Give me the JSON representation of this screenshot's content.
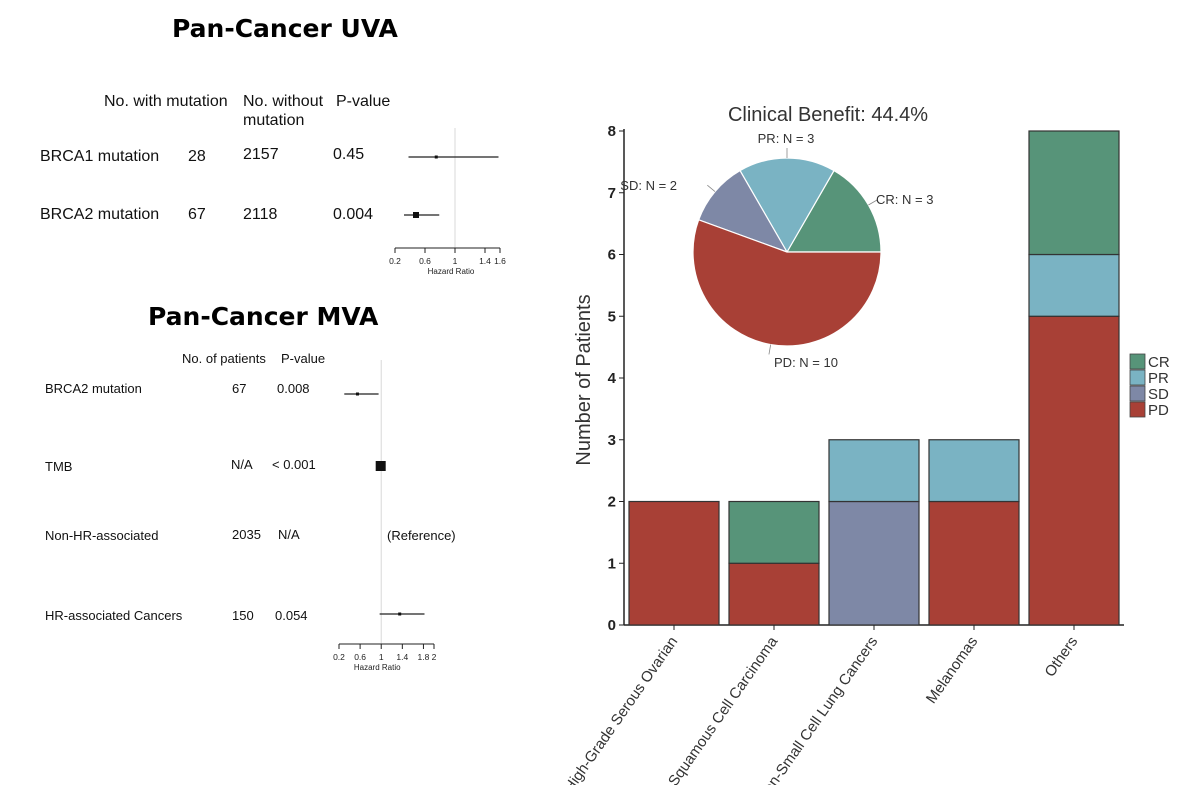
{
  "uva": {
    "title": "Pan-Cancer UVA",
    "col_with": "No. with mutation",
    "col_without_1": "No. without",
    "col_without_2": "mutation",
    "col_p": "P-value",
    "rows": [
      {
        "label": "BRCA1 mutation",
        "with": "28",
        "without": "2157",
        "p": "0.45"
      },
      {
        "label": "BRCA2 mutation",
        "with": "67",
        "without": "2118",
        "p": "0.004"
      }
    ],
    "axis_label": "Hazard Ratio",
    "ticks": [
      "0.2",
      "0.6",
      "1",
      "1.4",
      "1.6"
    ]
  },
  "mva": {
    "title": "Pan-Cancer MVA",
    "col_n": "No. of patients",
    "col_p": "P-value",
    "rows": [
      {
        "label": "BRCA2 mutation",
        "n": "67",
        "p": "0.008"
      },
      {
        "label": "TMB",
        "n": "N/A",
        "p": "< 0.001"
      },
      {
        "label": "Non-HR-associated",
        "n": "2035",
        "p": "N/A",
        "note": "(Reference)"
      },
      {
        "label": "HR-associated Cancers",
        "n": "150",
        "p": "0.054"
      }
    ],
    "axis_label": "Hazard Ratio",
    "ticks": [
      "0.2",
      "0.6",
      "1",
      "1.4",
      "1.8",
      "2"
    ]
  },
  "chart_data": [
    {
      "type": "forest",
      "title": "Pan-Cancer UVA",
      "xlabel": "Hazard Ratio",
      "xlim": [
        0.2,
        1.6
      ],
      "reference": 1,
      "rows": [
        {
          "label": "BRCA1 mutation",
          "hr": 0.75,
          "ci": [
            0.38,
            1.58
          ]
        },
        {
          "label": "BRCA2 mutation",
          "hr": 0.48,
          "ci": [
            0.32,
            0.79
          ]
        }
      ]
    },
    {
      "type": "forest",
      "title": "Pan-Cancer MVA",
      "xlabel": "Hazard Ratio",
      "xlim": [
        0.2,
        2
      ],
      "reference": 1,
      "rows": [
        {
          "label": "BRCA2 mutation",
          "hr": 0.55,
          "ci": [
            0.3,
            0.95
          ]
        },
        {
          "label": "TMB",
          "hr": 0.99,
          "ci": [
            0.97,
            1.01
          ]
        },
        {
          "label": "HR-associated Cancers",
          "hr": 1.35,
          "ci": [
            0.97,
            1.82
          ]
        }
      ]
    },
    {
      "type": "bar",
      "stacked": true,
      "title": "Clinical Benefit: 44.4%",
      "xlabel": "",
      "ylabel": "Number of Patients",
      "ylim": [
        0,
        8
      ],
      "yticks": [
        "0",
        "1",
        "2",
        "3",
        "4",
        "5",
        "6",
        "7",
        "8"
      ],
      "categories": [
        "High-Grade Serous Ovarian",
        "Squamous Cell Carcinoma",
        "Non-Small Cell Lung Cancers",
        "Melanomas",
        "Others"
      ],
      "series": [
        {
          "name": "PD",
          "color": "#a84036",
          "values": [
            2,
            1,
            0,
            2,
            5
          ]
        },
        {
          "name": "SD",
          "color": "#7e88a6",
          "values": [
            0,
            0,
            2,
            0,
            0
          ]
        },
        {
          "name": "PR",
          "color": "#7ab3c3",
          "values": [
            0,
            0,
            1,
            1,
            1
          ]
        },
        {
          "name": "CR",
          "color": "#579479",
          "values": [
            0,
            1,
            0,
            0,
            2
          ]
        }
      ],
      "legend": {
        "position": "right",
        "order": [
          "CR",
          "PR",
          "SD",
          "PD"
        ]
      }
    },
    {
      "type": "pie",
      "slices": [
        {
          "label": "CR: N = 3",
          "value": 3,
          "color": "#579479"
        },
        {
          "label": "PR: N = 3",
          "value": 3,
          "color": "#7ab3c3"
        },
        {
          "label": "SD: N = 2",
          "value": 2,
          "color": "#7e88a6"
        },
        {
          "label": "PD: N = 10",
          "value": 10,
          "color": "#a84036"
        }
      ]
    }
  ]
}
